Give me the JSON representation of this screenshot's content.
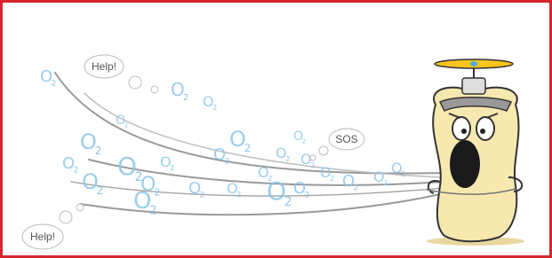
{
  "bubbles": {
    "top": "Help!",
    "middle": "SOS",
    "bottom": "Help!"
  },
  "oxygen": {
    "letter": "O",
    "subscript": "2"
  }
}
